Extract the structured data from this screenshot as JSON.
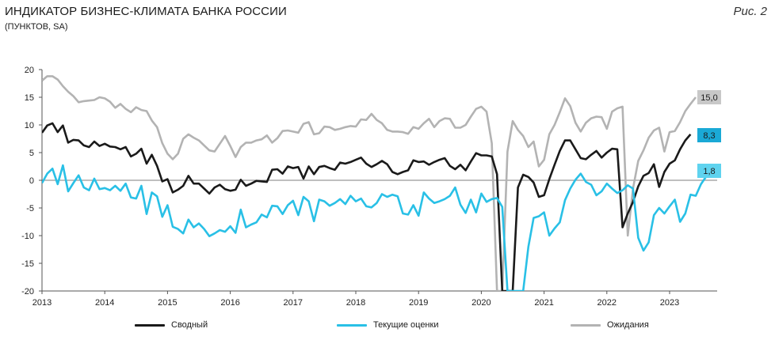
{
  "header": {
    "title": "ИНДИКАТОР БИЗНЕС-КЛИМАТА БАНКА РОССИИ",
    "subtitle": "(ПУНКТОВ, SA)",
    "figure_label": "Рис. 2"
  },
  "colors": {
    "summary": "#1a1a1a",
    "current": "#29c0e6",
    "expect": "#b3b3b3",
    "axis": "#555555",
    "label_summary_bg": "#1aa9d6",
    "label_current_bg": "#5fd3ef",
    "label_expect_bg": "#c8c8c8"
  },
  "chart_data": {
    "type": "line",
    "title": "ИНДИКАТОР БИЗНЕС-КЛИМАТА БАНКА РОССИИ",
    "subtitle": "(ПУНКТОВ, SA)",
    "xlabel": "",
    "ylabel": "",
    "ylim": [
      -20,
      20
    ],
    "y_ticks": [
      20,
      15,
      10,
      5,
      0,
      -5,
      -10,
      -15,
      -20
    ],
    "x_ticks": [
      "2013",
      "2014",
      "2015",
      "2016",
      "2017",
      "2018",
      "2019",
      "2020",
      "2021",
      "2022",
      "2023"
    ],
    "x_start": "2013-01",
    "frequency": "monthly",
    "grid": false,
    "legend_position": "bottom",
    "series": [
      {
        "name": "Ожидания",
        "end_label": "15,0",
        "values": [
          18,
          18.8,
          18.8,
          18.2,
          17,
          16,
          15.2,
          14.1,
          14.3,
          14.4,
          14.5,
          15,
          14.8,
          14.2,
          13.1,
          13.8,
          12.9,
          12.3,
          13.2,
          12.7,
          12.5,
          10.8,
          9.6,
          6.7,
          4.8,
          3.8,
          4.8,
          7.5,
          8.3,
          7.7,
          7.2,
          6.3,
          5.4,
          5.2,
          6.6,
          8,
          6.2,
          4.2,
          6,
          6.8,
          6.8,
          7.2,
          7.4,
          8.1,
          6.8,
          7.6,
          8.9,
          9,
          8.8,
          8.6,
          10.2,
          10.5,
          8.3,
          8.5,
          9.7,
          9.6,
          9.1,
          9.3,
          9.6,
          9.8,
          9.7,
          11,
          10.9,
          12,
          10.9,
          10.3,
          9.1,
          8.8,
          8.8,
          8.7,
          8.4,
          9.6,
          9.3,
          10.3,
          11.1,
          9.6,
          10.7,
          11.2,
          11.1,
          9.5,
          9.5,
          10,
          11.5,
          12.9,
          13.3,
          12.4,
          6.7,
          -20,
          -20,
          5.2,
          10.7,
          9.1,
          8,
          6,
          7,
          2.5,
          3.7,
          8.3,
          10,
          12.3,
          14.8,
          13.4,
          10.4,
          8.8,
          10.4,
          11.2,
          11.5,
          11.4,
          9.3,
          12.4,
          13,
          13.3,
          -10,
          -1.5,
          3.5,
          5.4,
          7.7,
          9,
          9.5,
          5.2,
          8.7,
          8.9,
          10.5,
          12.5,
          13.8,
          15
        ]
      },
      {
        "name": "Сводный",
        "end_label": "8,3",
        "values": [
          8.6,
          9.9,
          10.3,
          8.7,
          9.9,
          6.8,
          7.3,
          7.2,
          6.3,
          6,
          7,
          6.2,
          6.6,
          6.1,
          6,
          5.6,
          6,
          4.3,
          4.8,
          5.7,
          3,
          4.6,
          2.6,
          -0.2,
          0.2,
          -2.2,
          -1.7,
          -1,
          0.8,
          -0.6,
          -0.6,
          -1.5,
          -2.4,
          -1.3,
          -0.8,
          -1.6,
          -1.9,
          -1.7,
          0.1,
          -1,
          -0.6,
          -0.1,
          -0.2,
          -0.3,
          1.9,
          2,
          1.2,
          2.5,
          2.2,
          2.4,
          0.3,
          2.5,
          1.1,
          2.4,
          2.6,
          2.2,
          1.9,
          3.2,
          3,
          3.3,
          3.7,
          4.1,
          3,
          2.4,
          2.9,
          3.5,
          2.9,
          1.5,
          1.1,
          1.5,
          1.8,
          3.6,
          3.3,
          3.4,
          2.8,
          3.3,
          3.7,
          4,
          2.6,
          2,
          2.8,
          1.8,
          3.4,
          4.9,
          4.5,
          4.5,
          4.3,
          1.1,
          -20,
          -20,
          -20,
          -1.3,
          1,
          0.6,
          -0.4,
          -3,
          -2.7,
          0.2,
          2.8,
          5.3,
          7.2,
          7.2,
          5.6,
          4,
          3.8,
          4.6,
          5.3,
          4.1,
          5,
          5.7,
          5.6,
          -8.5,
          -6,
          -3.9,
          -1.1,
          0.8,
          1.3,
          2.9,
          -1.2,
          1.5,
          3,
          3.6,
          5.6,
          7.2,
          8.3
        ]
      },
      {
        "name": "Текущие оценки",
        "end_label": "1,8",
        "values": [
          -0.5,
          1.2,
          2.1,
          -0.7,
          2.7,
          -2,
          -0.5,
          0.9,
          -1.3,
          -1.8,
          0.3,
          -1.6,
          -1.4,
          -1.8,
          -1,
          -1.9,
          -0.6,
          -3.1,
          -3.3,
          -1,
          -6.1,
          -2.2,
          -2.9,
          -6.6,
          -4.5,
          -8.4,
          -8.8,
          -9.6,
          -7.1,
          -8.5,
          -7.8,
          -8.8,
          -10.1,
          -9.6,
          -9,
          -9.3,
          -8.3,
          -9.5,
          -5.3,
          -8.5,
          -8,
          -7.6,
          -6.2,
          -6.7,
          -4.6,
          -4.7,
          -6.1,
          -4.5,
          -3.7,
          -6.3,
          -3,
          -3.8,
          -7.4,
          -3.5,
          -3.8,
          -4.6,
          -4.1,
          -3.4,
          -4.3,
          -2.8,
          -3.8,
          -3.3,
          -4.7,
          -4.9,
          -4.1,
          -2.5,
          -3,
          -2.6,
          -2.9,
          -6,
          -6.2,
          -4.5,
          -6.4,
          -2.2,
          -3.3,
          -4.1,
          -3.8,
          -3.4,
          -2.8,
          -1.3,
          -4.4,
          -5.9,
          -3.5,
          -5.8,
          -2.4,
          -3.9,
          -3.4,
          -3.2,
          -4.8,
          -20,
          -20,
          -20,
          -20,
          -12,
          -6.8,
          -6.5,
          -5.8,
          -10,
          -8.7,
          -7.6,
          -3.6,
          -1.5,
          0.1,
          1.2,
          -0.3,
          -0.8,
          -2.7,
          -2,
          -0.6,
          -1.5,
          -2.3,
          -1.8,
          -0.9,
          -1.5,
          -10.4,
          -12.7,
          -11.2,
          -6.3,
          -5,
          -6,
          -4.7,
          -3.5,
          -7.5,
          -6,
          -2.6,
          -2.8,
          -0.7,
          0.7,
          1.8
        ]
      }
    ]
  },
  "legend": {
    "summary": "Сводный",
    "current": "Текущие оценки",
    "expect": "Ожидания"
  }
}
